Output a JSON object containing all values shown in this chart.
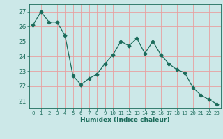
{
  "x": [
    0,
    1,
    2,
    3,
    4,
    5,
    6,
    7,
    8,
    9,
    10,
    11,
    12,
    13,
    14,
    15,
    16,
    17,
    18,
    19,
    20,
    21,
    22,
    23
  ],
  "y": [
    26.1,
    27.0,
    26.3,
    26.3,
    25.4,
    22.7,
    22.1,
    22.5,
    22.8,
    23.5,
    24.1,
    25.0,
    24.7,
    25.2,
    24.2,
    25.0,
    24.1,
    23.5,
    23.1,
    22.9,
    21.9,
    21.4,
    21.1,
    20.8
  ],
  "line_color": "#1a6b5a",
  "marker": "D",
  "marker_size": 2.5,
  "bg_color": "#cce8e8",
  "grid_color": "#e8a0a0",
  "tick_color": "#1a6b5a",
  "xlabel": "Humidex (Indice chaleur)",
  "ylabel_ticks": [
    21,
    22,
    23,
    24,
    25,
    26,
    27
  ],
  "ylim": [
    20.5,
    27.5
  ],
  "xlim": [
    -0.5,
    23.5
  ]
}
